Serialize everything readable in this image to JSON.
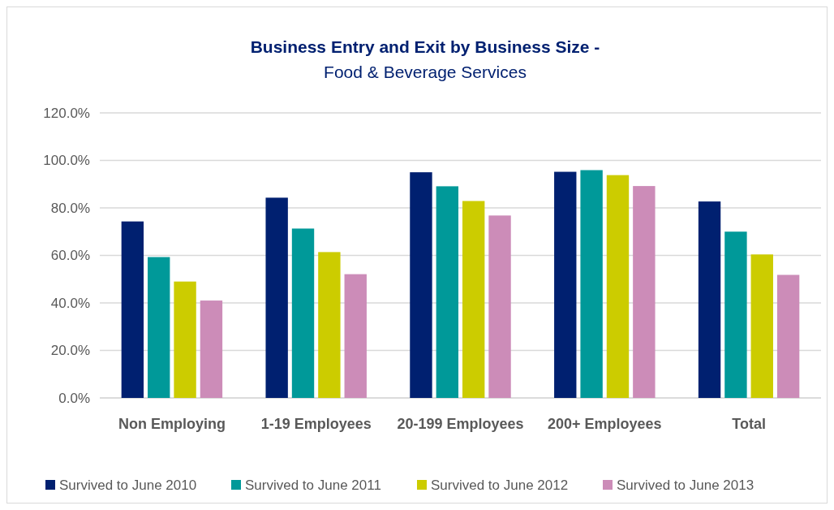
{
  "chart_data": {
    "type": "bar",
    "title": "Business Entry and Exit by Business Size -",
    "subtitle": "Food & Beverage Services",
    "categories": [
      "Non Employing",
      "1-19 Employees",
      "20-199 Employees",
      "200+ Employees",
      "Total"
    ],
    "series": [
      {
        "name": "Survived to June 2010",
        "color": "#002070",
        "values": [
          74.3,
          84.3,
          95.0,
          95.2,
          82.7
        ]
      },
      {
        "name": "Survived to June 2011",
        "color": "#009999",
        "values": [
          59.3,
          71.3,
          89.1,
          95.9,
          70.0
        ]
      },
      {
        "name": "Survived to June 2012",
        "color": "#cccc00",
        "values": [
          49.0,
          61.4,
          82.9,
          93.8,
          60.4
        ]
      },
      {
        "name": "Survived to June 2013",
        "color": "#cc8cb8",
        "values": [
          41.0,
          52.1,
          76.8,
          89.2,
          51.8
        ]
      }
    ],
    "ylim": [
      0,
      120
    ],
    "yticks": [
      {
        "value": 0,
        "label": "0.0%"
      },
      {
        "value": 20,
        "label": "20.0%"
      },
      {
        "value": 40,
        "label": "40.0%"
      },
      {
        "value": 60,
        "label": "60.0%"
      },
      {
        "value": 80,
        "label": "80.0%"
      },
      {
        "value": 100,
        "label": "100.0%"
      },
      {
        "value": 120,
        "label": "120.0%"
      }
    ],
    "grid": "y",
    "legend": "bottom"
  }
}
